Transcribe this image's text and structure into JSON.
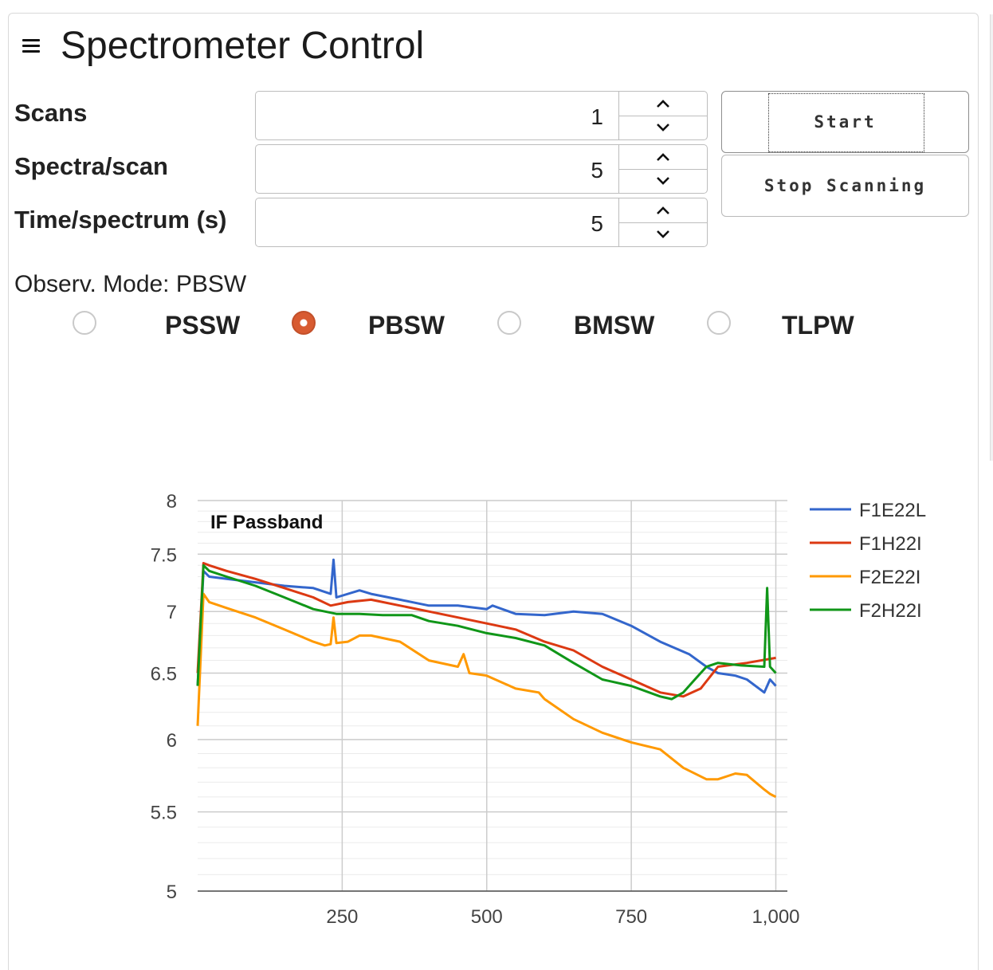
{
  "header": {
    "title": "Spectrometer Control",
    "menu_icon": "hamburger-icon"
  },
  "fields": [
    {
      "label": "Scans",
      "value": "1"
    },
    {
      "label": "Spectra/scan",
      "value": "5"
    },
    {
      "label": "Time/spectrum (s)",
      "value": "5"
    }
  ],
  "buttons": {
    "start": "Start",
    "stop": "Stop Scanning"
  },
  "mode": {
    "label": "Observ. Mode: PBSW",
    "options": [
      "PSSW",
      "PBSW",
      "BMSW",
      "TLPW"
    ],
    "selected": "PBSW"
  },
  "colors": {
    "accent": "#d85b31",
    "blue": "#3366cc",
    "red": "#dc3912",
    "orange": "#ff9900",
    "green": "#109618"
  },
  "chart_data": {
    "type": "line",
    "title": "IF Passband",
    "xlabel": "",
    "ylabel": "",
    "xlim": [
      0,
      1020
    ],
    "ylim": [
      5,
      8
    ],
    "xticks": [
      "250",
      "500",
      "750",
      "1,000"
    ],
    "yticks": [
      "5",
      "5.5",
      "6",
      "6.5",
      "7",
      "7.5",
      "8"
    ],
    "grid": true,
    "legend_position": "right",
    "series": [
      {
        "name": "F1E22L",
        "color": "#3366cc",
        "x": [
          0,
          10,
          20,
          50,
          100,
          150,
          200,
          230,
          235,
          240,
          280,
          300,
          350,
          400,
          450,
          500,
          510,
          550,
          600,
          650,
          700,
          750,
          800,
          850,
          880,
          900,
          930,
          950,
          980,
          990,
          1000
        ],
        "y": [
          6.4,
          7.35,
          7.3,
          7.28,
          7.25,
          7.22,
          7.2,
          7.15,
          7.45,
          7.12,
          7.18,
          7.15,
          7.1,
          7.05,
          7.05,
          7.02,
          7.05,
          6.98,
          6.97,
          7.0,
          6.98,
          6.88,
          6.75,
          6.65,
          6.55,
          6.5,
          6.48,
          6.45,
          6.35,
          6.45,
          6.4
        ]
      },
      {
        "name": "F1H22I",
        "color": "#dc3912",
        "x": [
          0,
          10,
          20,
          50,
          100,
          150,
          200,
          230,
          260,
          300,
          350,
          400,
          450,
          500,
          550,
          600,
          650,
          700,
          750,
          800,
          840,
          870,
          900,
          950,
          1000
        ],
        "y": [
          6.5,
          7.42,
          7.4,
          7.35,
          7.28,
          7.2,
          7.12,
          7.05,
          7.08,
          7.1,
          7.05,
          7.0,
          6.95,
          6.9,
          6.85,
          6.75,
          6.68,
          6.55,
          6.45,
          6.35,
          6.32,
          6.38,
          6.55,
          6.58,
          6.62
        ]
      },
      {
        "name": "F2E22I",
        "color": "#ff9900",
        "x": [
          0,
          10,
          20,
          50,
          100,
          150,
          200,
          220,
          230,
          235,
          240,
          260,
          280,
          300,
          350,
          400,
          450,
          460,
          470,
          500,
          550,
          590,
          600,
          650,
          700,
          750,
          800,
          840,
          880,
          900,
          930,
          950,
          980,
          990,
          1000
        ],
        "y": [
          6.1,
          7.15,
          7.08,
          7.03,
          6.95,
          6.85,
          6.75,
          6.72,
          6.73,
          6.95,
          6.74,
          6.75,
          6.8,
          6.8,
          6.75,
          6.6,
          6.55,
          6.65,
          6.5,
          6.48,
          6.38,
          6.35,
          6.3,
          6.15,
          6.05,
          5.98,
          5.93,
          5.8,
          5.72,
          5.72,
          5.76,
          5.75,
          5.65,
          5.62,
          5.6
        ]
      },
      {
        "name": "F2H22I",
        "color": "#109618",
        "x": [
          0,
          10,
          20,
          50,
          100,
          150,
          200,
          240,
          280,
          320,
          370,
          400,
          450,
          500,
          550,
          600,
          650,
          700,
          750,
          800,
          820,
          840,
          860,
          880,
          900,
          940,
          980,
          985,
          990,
          1000
        ],
        "y": [
          6.4,
          7.4,
          7.35,
          7.3,
          7.22,
          7.12,
          7.02,
          6.98,
          6.98,
          6.97,
          6.97,
          6.92,
          6.88,
          6.82,
          6.78,
          6.72,
          6.58,
          6.45,
          6.4,
          6.32,
          6.3,
          6.35,
          6.45,
          6.55,
          6.58,
          6.56,
          6.55,
          7.2,
          6.55,
          6.5
        ]
      }
    ]
  }
}
